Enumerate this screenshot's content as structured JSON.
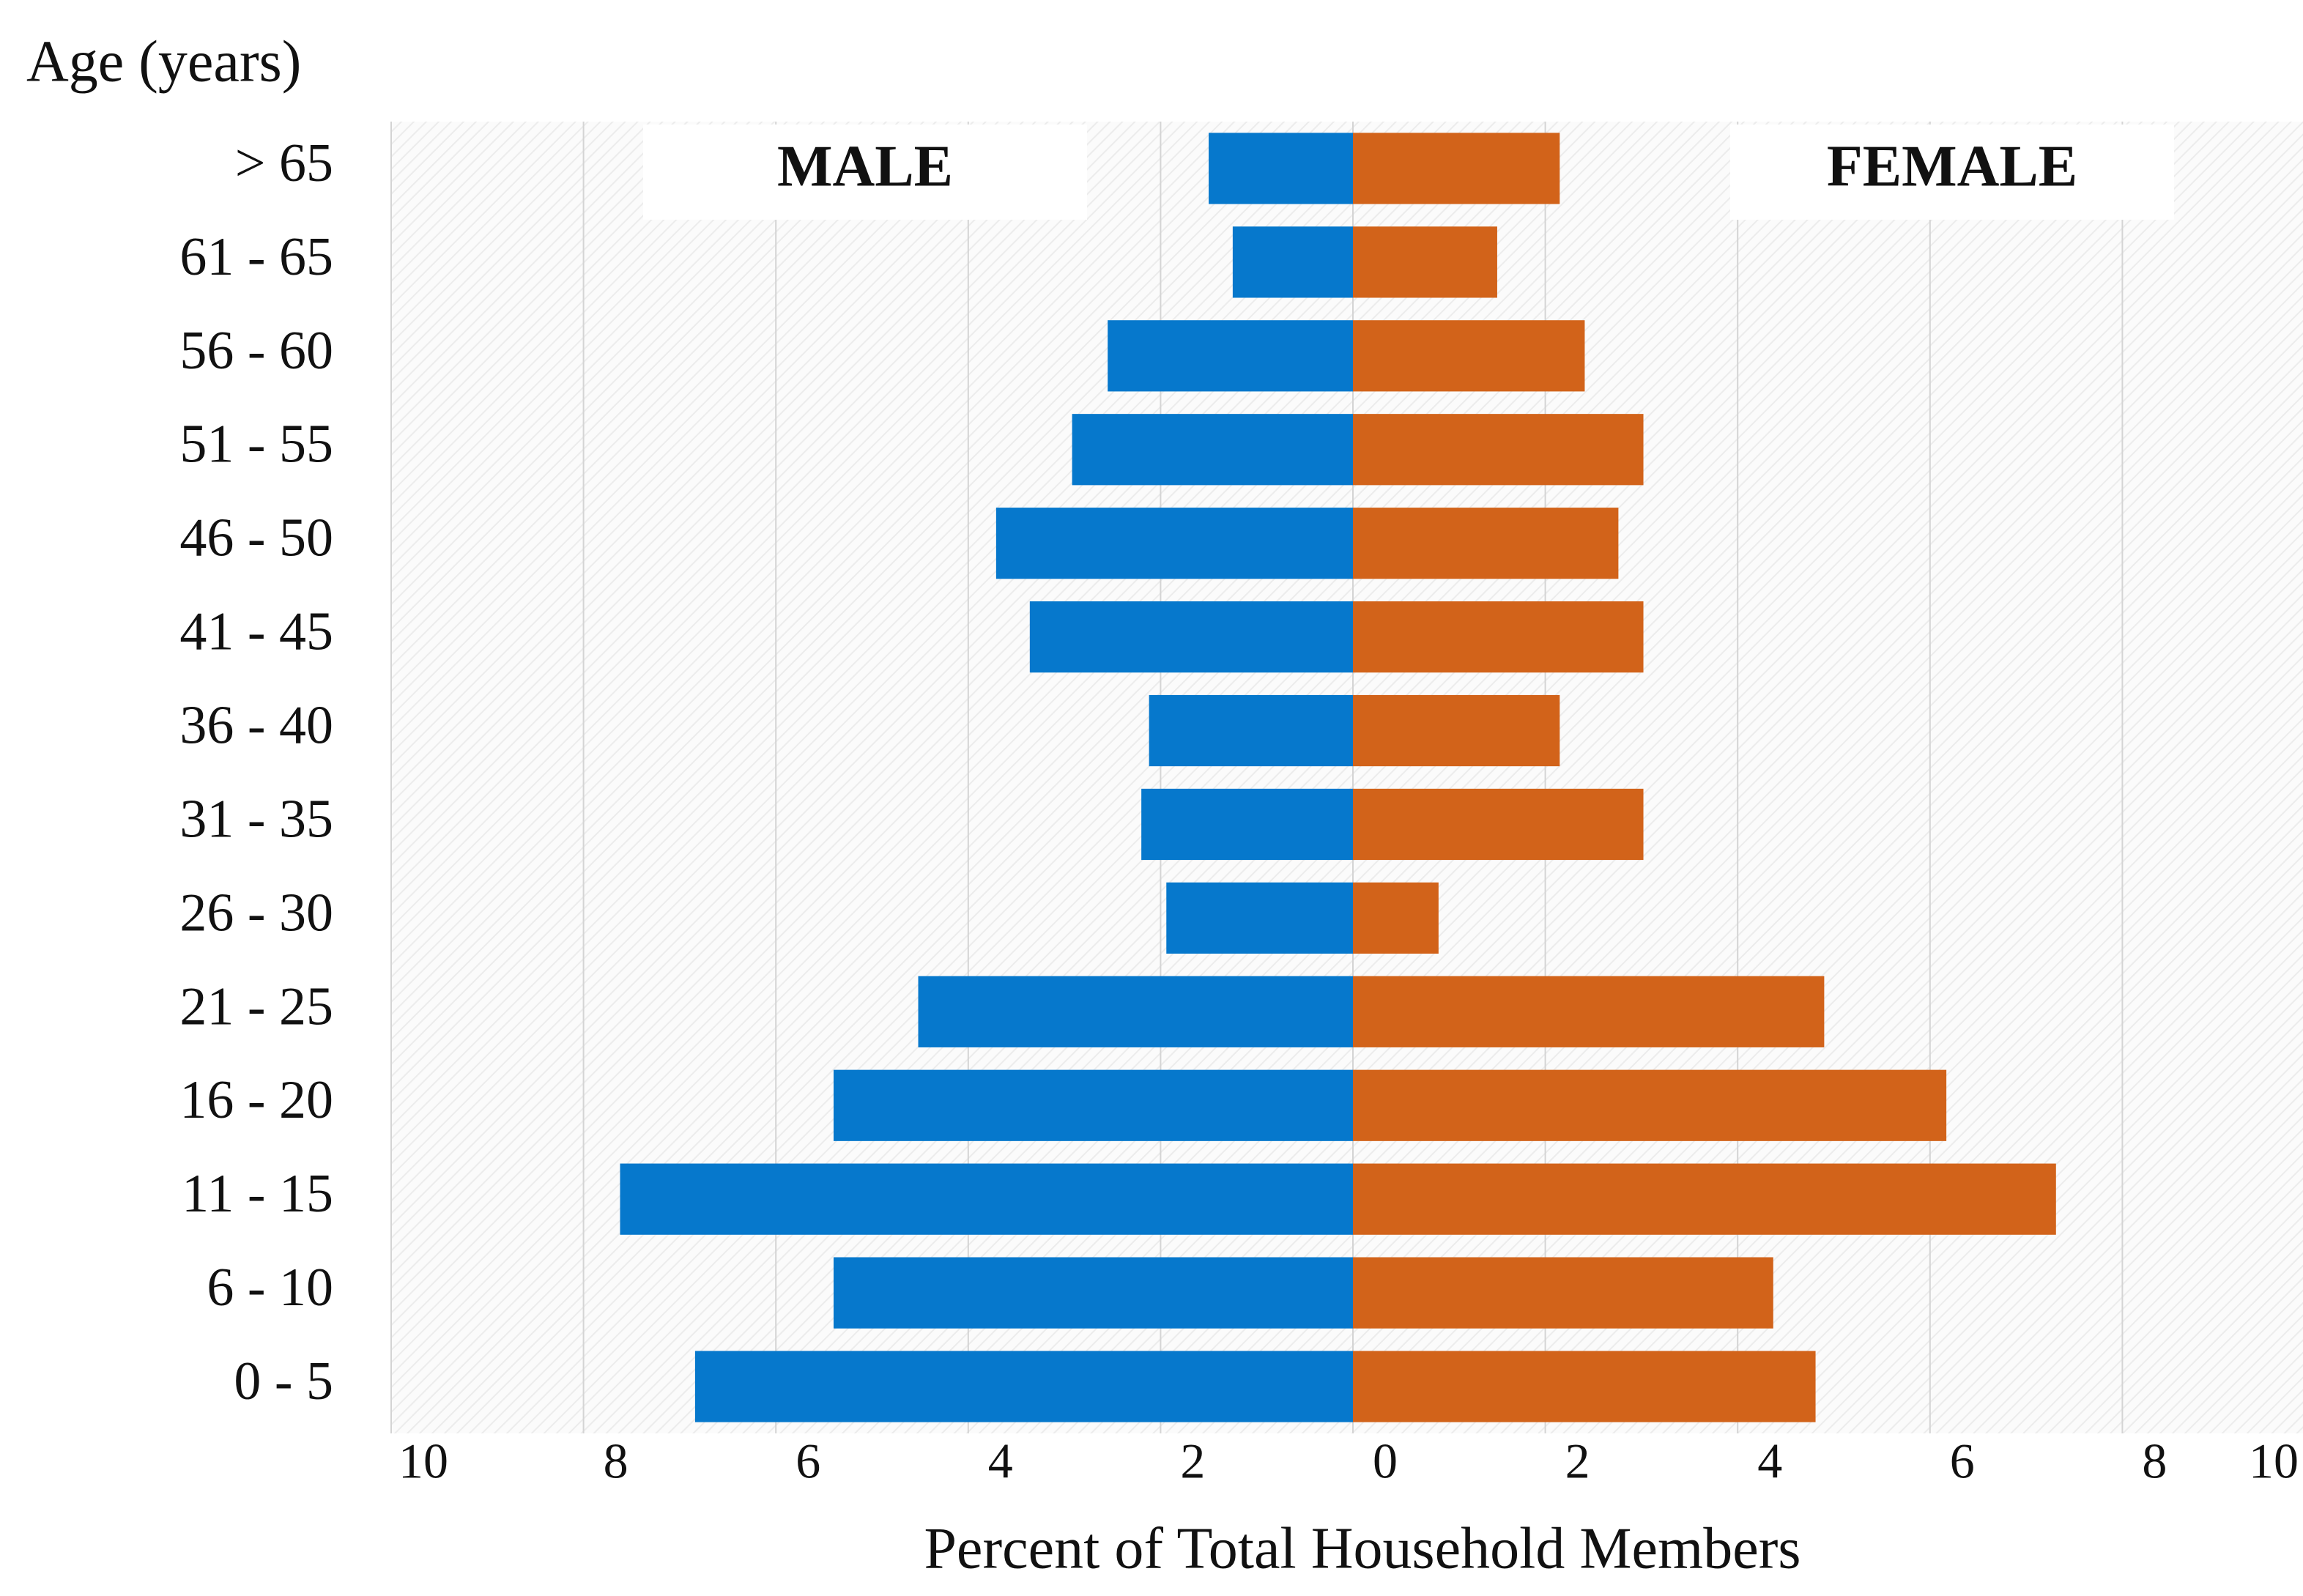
{
  "chart_data": {
    "type": "pyramid",
    "y_axis_label": "Age (years)",
    "x_axis_label": "Percent of Total Household Members",
    "categories": [
      "> 65",
      "61 - 65",
      "56 - 60",
      "51 - 55",
      "46 - 50",
      "41 - 45",
      "36 - 40",
      "31 - 35",
      "26 - 30",
      "21 - 25",
      "16 - 20",
      "11 - 15",
      "6 - 10",
      "0 - 5"
    ],
    "series": [
      {
        "name": "MALE",
        "color": "#0678cc",
        "axis": "left",
        "values": [
          1.5,
          1.25,
          2.55,
          2.92,
          3.71,
          3.36,
          2.12,
          2.2,
          1.94,
          4.52,
          5.4,
          7.62,
          5.4,
          6.84
        ]
      },
      {
        "name": "FEMALE",
        "color": "#d2631a",
        "axis": "right",
        "values": [
          2.15,
          1.5,
          2.41,
          3.02,
          2.76,
          3.02,
          2.15,
          3.02,
          0.89,
          4.9,
          6.17,
          7.31,
          4.37,
          4.81
        ]
      }
    ],
    "left_xlim": [
      10,
      0
    ],
    "left_xticks": [
      10,
      8,
      6,
      4,
      2
    ],
    "right_xlim": [
      0,
      10
    ],
    "right_xticks": [
      0,
      2,
      4,
      6,
      8,
      10
    ],
    "grid": true
  }
}
